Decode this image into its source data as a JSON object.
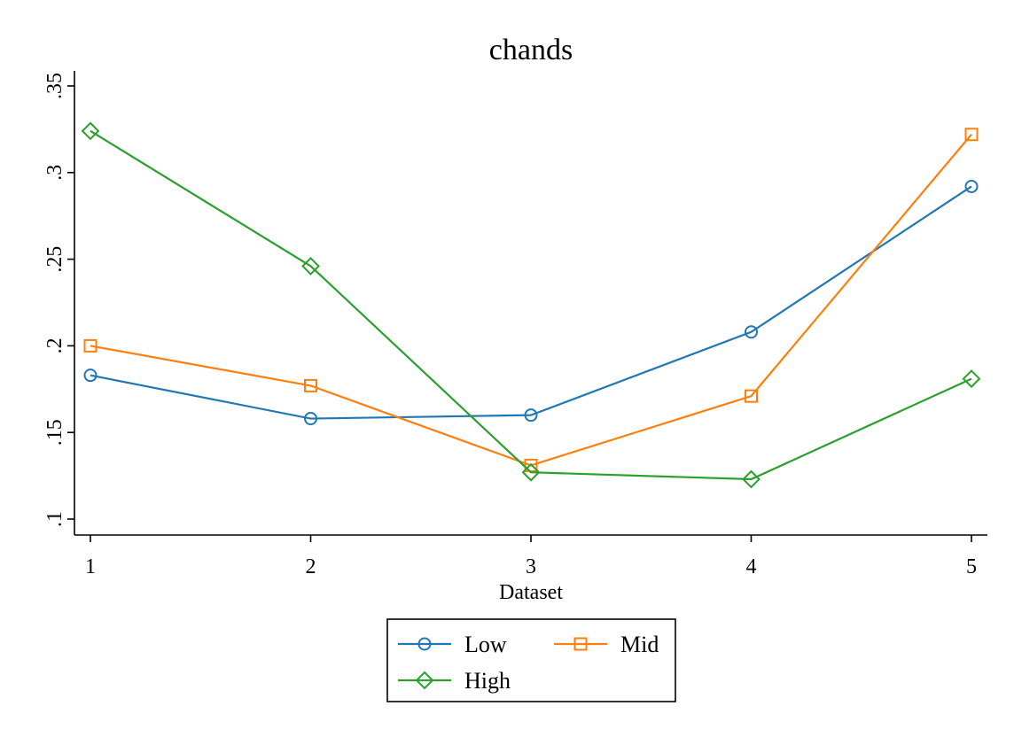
{
  "chart_data": {
    "type": "line",
    "title": "chands",
    "xlabel": "Dataset",
    "ylabel": "",
    "x": [
      1,
      2,
      3,
      4,
      5
    ],
    "x_tick_labels": [
      "1",
      "2",
      "3",
      "4",
      "5"
    ],
    "y_ticks": [
      0.1,
      0.15,
      0.2,
      0.25,
      0.3,
      0.35
    ],
    "y_tick_labels": [
      ".1",
      ".15",
      ".2",
      ".25",
      ".3",
      ".35"
    ],
    "ylim": [
      0.1,
      0.35
    ],
    "xlim": [
      1,
      5
    ],
    "grid": false,
    "legend_position": "bottom",
    "series": [
      {
        "name": "Low",
        "marker": "circle",
        "color": "#1f77b4",
        "values": [
          0.183,
          0.158,
          0.16,
          0.208,
          0.292
        ]
      },
      {
        "name": "Mid",
        "marker": "square",
        "color": "#ff7f0e",
        "values": [
          0.2,
          0.177,
          0.131,
          0.171,
          0.322
        ]
      },
      {
        "name": "High",
        "marker": "diamond",
        "color": "#2ca02c",
        "values": [
          0.324,
          0.246,
          0.127,
          0.123,
          0.181
        ]
      }
    ]
  }
}
